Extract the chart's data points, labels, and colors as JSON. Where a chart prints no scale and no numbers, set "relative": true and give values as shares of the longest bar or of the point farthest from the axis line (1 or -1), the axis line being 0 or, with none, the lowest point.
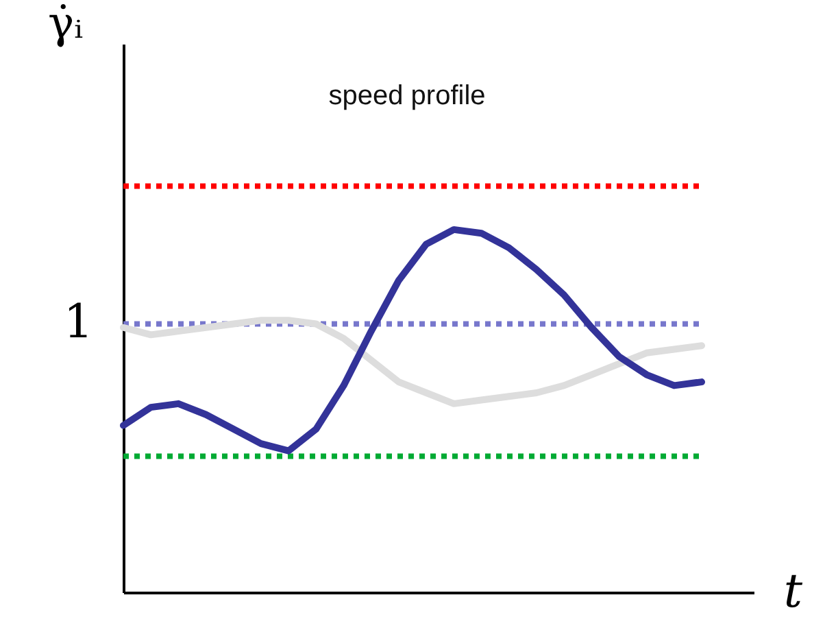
{
  "chart_data": {
    "type": "line",
    "title": "speed profile",
    "xlabel": "t",
    "ylabel": "γ̇ᵢ",
    "relative": true,
    "categories": [
      null,
      null,
      null,
      null,
      null,
      null,
      null,
      null,
      null,
      null,
      null,
      null,
      null,
      null,
      null,
      null,
      null,
      null,
      null,
      null,
      null,
      null
    ],
    "series": [
      {
        "color": "#dddddd",
        "values": [
          0.73,
          0.71,
          0.72,
          0.73,
          0.74,
          0.75,
          0.75,
          0.74,
          0.7,
          0.64,
          0.58,
          0.55,
          0.52,
          0.53,
          0.54,
          0.55,
          0.57,
          0.6,
          0.63,
          0.66,
          0.67,
          0.68
        ]
      },
      {
        "color": "#333399",
        "values": [
          0.46,
          0.51,
          0.52,
          0.49,
          0.45,
          0.41,
          0.39,
          0.45,
          0.57,
          0.72,
          0.86,
          0.96,
          1.0,
          0.99,
          0.95,
          0.89,
          0.82,
          0.73,
          0.65,
          0.6,
          0.57,
          0.58
        ]
      }
    ],
    "ref_lines": [
      {
        "axis": "y",
        "value": 1.12,
        "color": "#ff0000",
        "line_style": "dotted"
      },
      {
        "axis": "y",
        "value": 0.74,
        "label": "1",
        "color": "#7777cc",
        "line_style": "dotted"
      },
      {
        "axis": "y",
        "value": 0.375,
        "color": "#00aa33",
        "line_style": "dotted"
      }
    ]
  }
}
